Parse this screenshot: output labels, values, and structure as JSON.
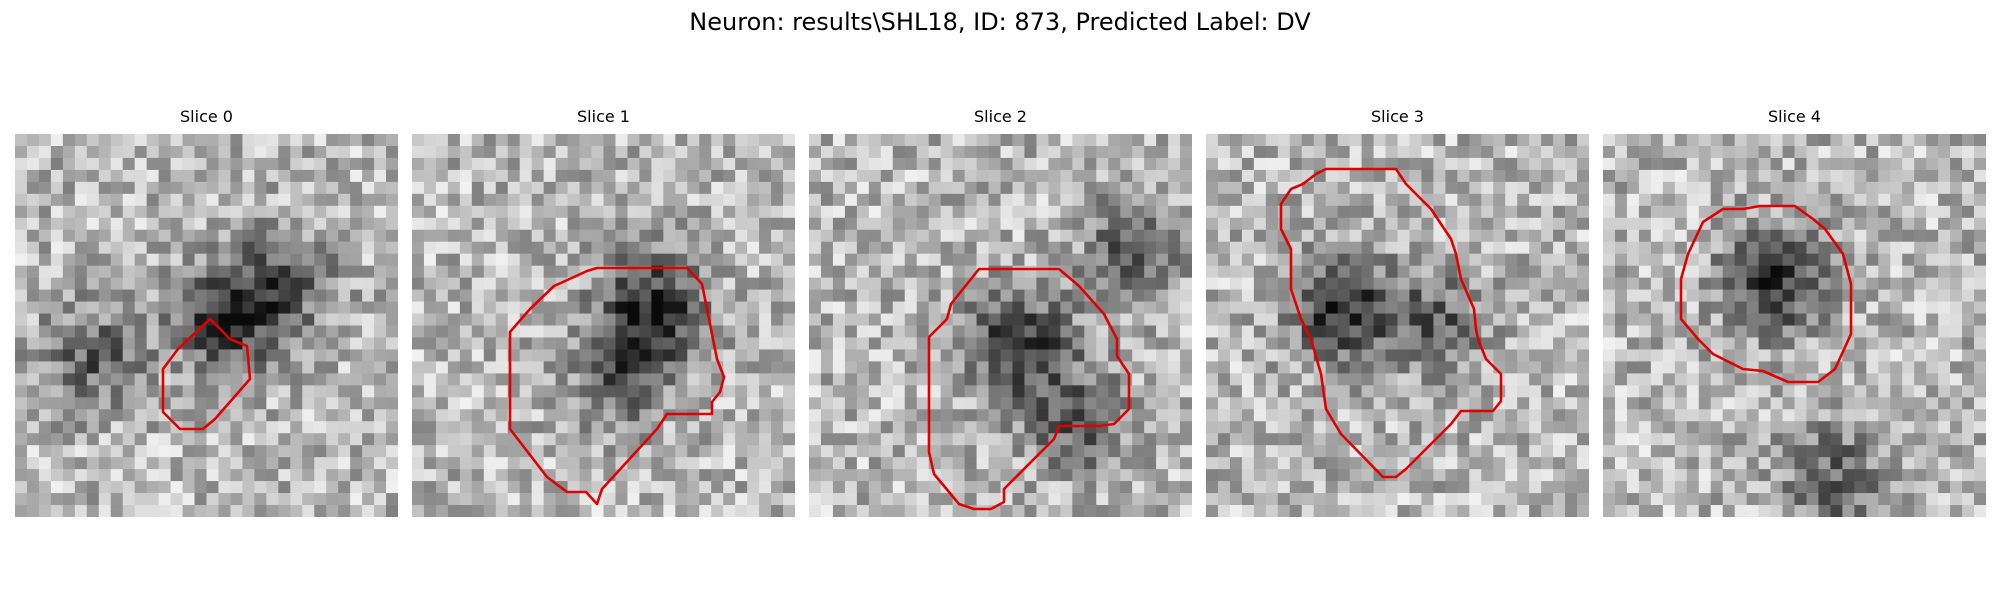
{
  "figure": {
    "title": "Neuron: results\\SHL18, ID: 873, Predicted Label: DV"
  },
  "colors": {
    "contour": "#e00000",
    "background": "#ffffff"
  },
  "panels": [
    {
      "title": "Slice 0",
      "dark_centers": [
        [
          0.55,
          0.48
        ],
        [
          0.2,
          0.58
        ],
        [
          0.7,
          0.38
        ]
      ]
    },
    {
      "title": "Slice 1",
      "dark_centers": [
        [
          0.63,
          0.45
        ],
        [
          0.55,
          0.62
        ]
      ]
    },
    {
      "title": "Slice 2",
      "dark_centers": [
        [
          0.55,
          0.55
        ],
        [
          0.85,
          0.3
        ],
        [
          0.7,
          0.75
        ]
      ]
    },
    {
      "title": "Slice 3",
      "dark_centers": [
        [
          0.35,
          0.45
        ],
        [
          0.6,
          0.5
        ]
      ]
    },
    {
      "title": "Slice 4",
      "dark_centers": [
        [
          0.45,
          0.38
        ],
        [
          0.6,
          0.9
        ]
      ]
    }
  ]
}
